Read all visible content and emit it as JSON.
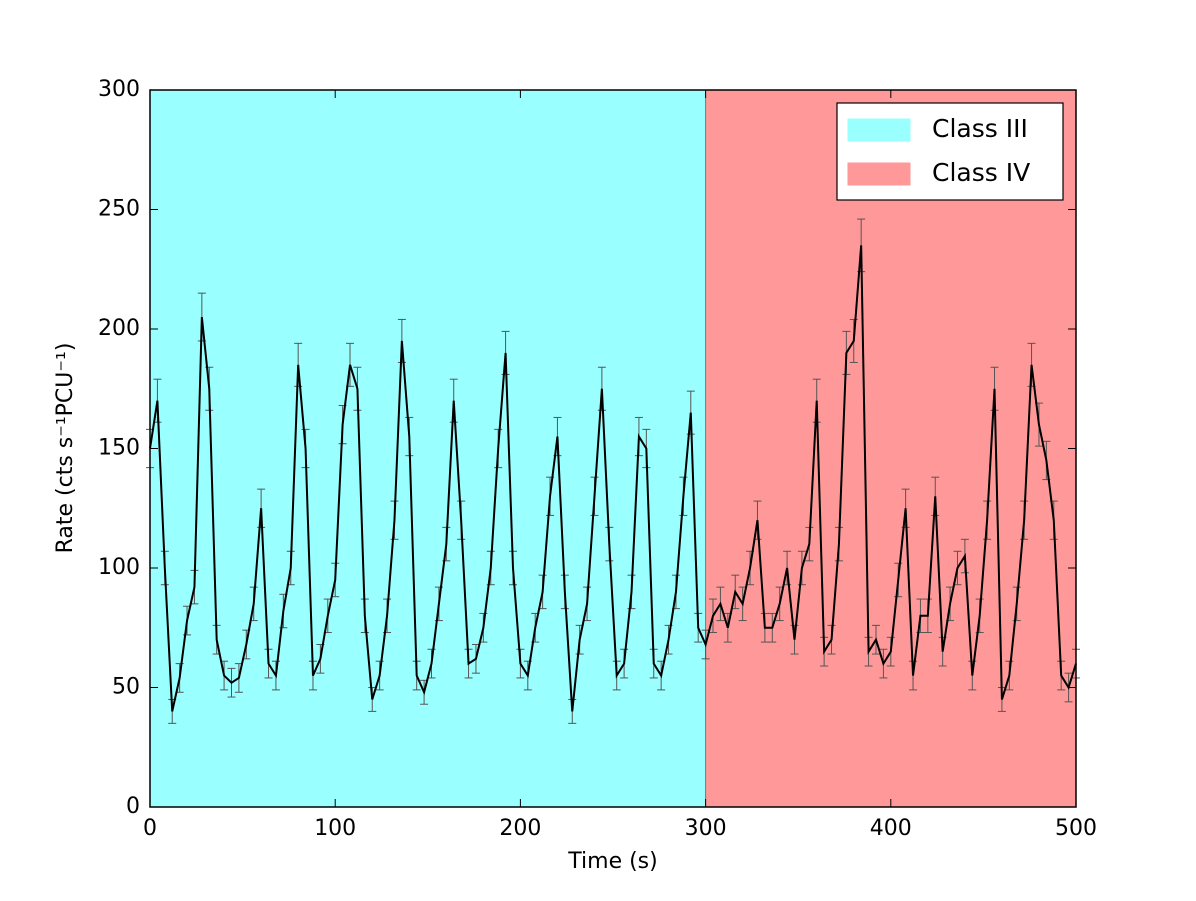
{
  "chart_data": {
    "type": "line",
    "xlabel": "Time (s)",
    "ylabel": "Rate (cts s⁻¹PCU⁻¹)",
    "regions": [
      {
        "name": "Class III",
        "color": "#99ffff",
        "range": [
          0,
          300
        ]
      },
      {
        "name": "Class IV",
        "color": "#ff9999",
        "range": [
          300,
          500
        ]
      }
    ],
    "legend": "upper right",
    "x": [
      0,
      4,
      8,
      12,
      16,
      20,
      24,
      28,
      32,
      36,
      40,
      44,
      48,
      52,
      56,
      60,
      64,
      68,
      72,
      76,
      80,
      84,
      88,
      92,
      96,
      100,
      104,
      108,
      112,
      116,
      120,
      124,
      128,
      132,
      136,
      140,
      144,
      148,
      152,
      156,
      160,
      164,
      168,
      172,
      176,
      180,
      184,
      188,
      192,
      196,
      200,
      204,
      208,
      212,
      216,
      220,
      224,
      228,
      232,
      236,
      240,
      244,
      248,
      252,
      256,
      260,
      264,
      268,
      272,
      276,
      280,
      284,
      288,
      292,
      296,
      300,
      304,
      308,
      312,
      316,
      320,
      324,
      328,
      332,
      336,
      340,
      344,
      348,
      352,
      356,
      360,
      364,
      368,
      372,
      376,
      380,
      384,
      388,
      392,
      396,
      400,
      404,
      408,
      412,
      416,
      420,
      424,
      428,
      432,
      436,
      440,
      444,
      448,
      452,
      456,
      460,
      464,
      468,
      472,
      476,
      480,
      484,
      488,
      492,
      496,
      500
    ],
    "series": [
      {
        "color": "#000000",
        "error_color": "#555555",
        "values": [
          150,
          170,
          100,
          40,
          54,
          78,
          92,
          205,
          175,
          70,
          55,
          52,
          54,
          68,
          85,
          125,
          60,
          55,
          82,
          100,
          185,
          150,
          55,
          62,
          80,
          95,
          160,
          185,
          175,
          80,
          45,
          55,
          80,
          120,
          195,
          155,
          55,
          48,
          60,
          85,
          110,
          170,
          120,
          60,
          62,
          75,
          100,
          150,
          190,
          100,
          60,
          55,
          75,
          90,
          130,
          155,
          90,
          40,
          70,
          85,
          130,
          175,
          110,
          55,
          60,
          90,
          155,
          150,
          60,
          55,
          70,
          90,
          130,
          165,
          75,
          68,
          80,
          85,
          75,
          90,
          85,
          100,
          120,
          75,
          75,
          85,
          100,
          70,
          100,
          110,
          170,
          65,
          70,
          110,
          190,
          195,
          235,
          65,
          70,
          60,
          65,
          95,
          125,
          55,
          80,
          80,
          130,
          65,
          85,
          100,
          105,
          55,
          80,
          120,
          175,
          45,
          55,
          85,
          120,
          185,
          160,
          145,
          120,
          55,
          50,
          60
        ],
        "errors": [
          8,
          9,
          7,
          5,
          6,
          6,
          7,
          10,
          9,
          6,
          6,
          6,
          6,
          6,
          7,
          8,
          6,
          6,
          7,
          7,
          9,
          8,
          6,
          6,
          7,
          7,
          8,
          9,
          9,
          7,
          5,
          6,
          7,
          8,
          9,
          8,
          6,
          5,
          6,
          7,
          7,
          9,
          8,
          6,
          6,
          6,
          7,
          8,
          9,
          7,
          6,
          6,
          6,
          7,
          8,
          8,
          7,
          5,
          6,
          7,
          8,
          9,
          7,
          6,
          6,
          7,
          8,
          8,
          6,
          6,
          6,
          7,
          8,
          9,
          6,
          6,
          7,
          7,
          6,
          7,
          7,
          7,
          8,
          6,
          6,
          7,
          7,
          6,
          7,
          7,
          9,
          6,
          6,
          7,
          9,
          9,
          11,
          6,
          6,
          6,
          6,
          7,
          8,
          6,
          7,
          7,
          8,
          6,
          7,
          7,
          7,
          6,
          7,
          8,
          9,
          5,
          6,
          7,
          8,
          9,
          9,
          8,
          8,
          6,
          6,
          6
        ]
      }
    ],
    "xlim": [
      0,
      500
    ],
    "xticks": [
      0,
      100,
      200,
      300,
      400,
      500
    ],
    "ylim": [
      0,
      300
    ],
    "yticks": [
      0,
      50,
      100,
      150,
      200,
      250,
      300
    ]
  }
}
